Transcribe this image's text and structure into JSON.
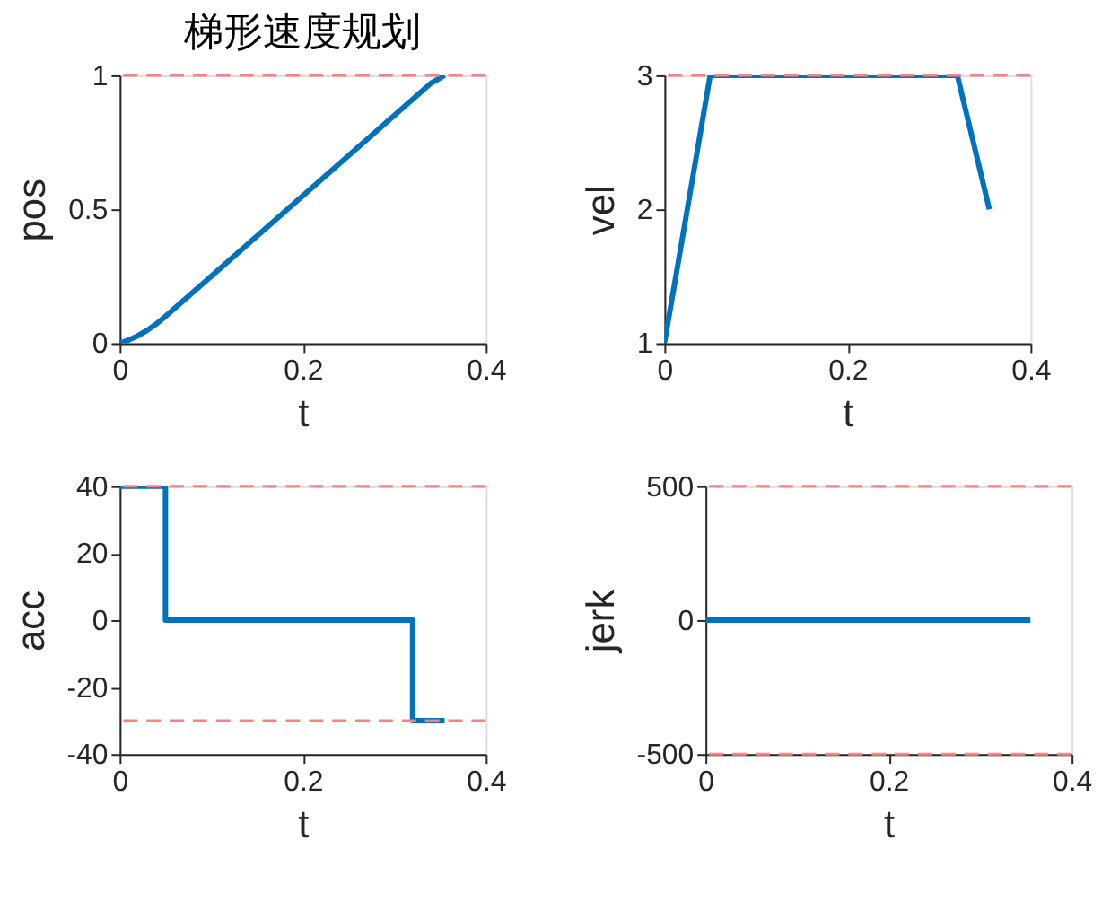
{
  "chart_data": [
    {
      "type": "line",
      "title": "梯形速度规划",
      "xlabel": "t",
      "ylabel": "pos",
      "xlim": [
        0,
        0.4
      ],
      "xticks": [
        0,
        0.2,
        0.4
      ],
      "ylim": [
        0,
        1
      ],
      "yticks": [
        0,
        0.5,
        1
      ],
      "grid": false,
      "line_style": "solid",
      "marker": "none",
      "series": [
        {
          "color": "#0072bd",
          "x": [
            0,
            0.01,
            0.02,
            0.03,
            0.04,
            0.05,
            0.32,
            0.33,
            0.34,
            0.355
          ],
          "values": [
            0,
            0.012,
            0.028,
            0.048,
            0.072,
            0.1,
            0.91,
            0.94,
            0.97,
            1
          ]
        }
      ],
      "ref_lines": [
        {
          "axis": "y",
          "value": 1,
          "color": "#ff8080",
          "line_style": "dashed"
        }
      ]
    },
    {
      "type": "line",
      "xlabel": "t",
      "ylabel": "vel",
      "xlim": [
        0,
        0.4
      ],
      "xticks": [
        0,
        0.2,
        0.4
      ],
      "ylim": [
        1,
        3
      ],
      "yticks": [
        1,
        2,
        3
      ],
      "grid": false,
      "line_style": "solid",
      "marker": "none",
      "series": [
        {
          "color": "#0072bd",
          "x": [
            0,
            0.05,
            0.32,
            0.355
          ],
          "values": [
            1,
            3,
            3,
            2
          ]
        }
      ],
      "ref_lines": [
        {
          "axis": "y",
          "value": 3,
          "color": "#ff8080",
          "line_style": "dashed"
        }
      ]
    },
    {
      "type": "line",
      "xlabel": "t",
      "ylabel": "acc",
      "xlim": [
        0,
        0.4
      ],
      "xticks": [
        0,
        0.2,
        0.4
      ],
      "ylim": [
        -40,
        40
      ],
      "yticks": [
        -40,
        -20,
        0,
        20,
        40
      ],
      "grid": false,
      "line_style": "solid",
      "marker": "none",
      "series": [
        {
          "color": "#0072bd",
          "x": [
            0,
            0.05,
            0.05,
            0.32,
            0.32,
            0.355
          ],
          "values": [
            40,
            40,
            0,
            0,
            -30,
            -30
          ]
        }
      ],
      "ref_lines": [
        {
          "axis": "y",
          "value": 40,
          "color": "#ff8080",
          "line_style": "dashed"
        },
        {
          "axis": "y",
          "value": -30,
          "color": "#ff8080",
          "line_style": "dashed"
        }
      ]
    },
    {
      "type": "line",
      "xlabel": "t",
      "ylabel": "jerk",
      "xlim": [
        0,
        0.4
      ],
      "xticks": [
        0,
        0.2,
        0.4
      ],
      "ylim": [
        -500,
        500
      ],
      "yticks": [
        -500,
        0,
        500
      ],
      "grid": false,
      "line_style": "solid",
      "marker": "none",
      "series": [
        {
          "color": "#0072bd",
          "x": [
            0,
            0.355
          ],
          "values": [
            0,
            0
          ]
        }
      ],
      "ref_lines": [
        {
          "axis": "y",
          "value": 500,
          "color": "#ff8080",
          "line_style": "dashed"
        },
        {
          "axis": "y",
          "value": -500,
          "color": "#ff8080",
          "line_style": "dashed"
        }
      ]
    }
  ]
}
